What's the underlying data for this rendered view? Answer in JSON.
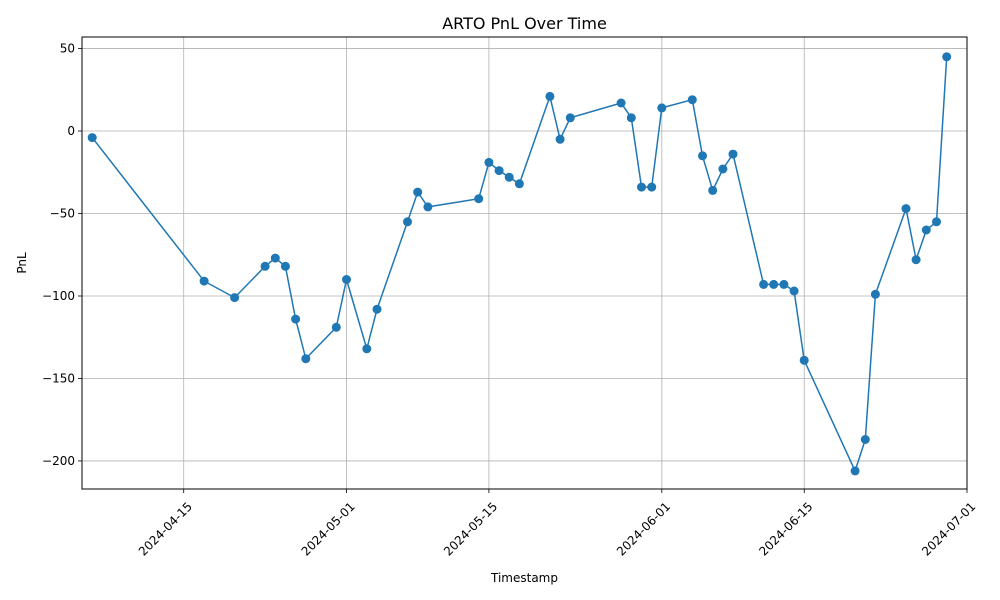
{
  "chart_data": {
    "type": "line",
    "title": "ARTO PnL Over Time",
    "xlabel": "Timestamp",
    "ylabel": "PnL",
    "xlim": [
      "2024-04-05",
      "2024-07-01"
    ],
    "ylim": [
      -217,
      57
    ],
    "x_ticks": [
      "2024-04-15",
      "2024-05-01",
      "2024-05-15",
      "2024-06-01",
      "2024-06-15",
      "2024-07-01"
    ],
    "y_ticks": [
      50,
      0,
      -50,
      -100,
      -150,
      -200
    ],
    "y_tick_labels": [
      "50",
      "0",
      "−50",
      "−100",
      "−150",
      "−200"
    ],
    "grid": true,
    "series_color": "#1f77b4",
    "marker": "circle",
    "series": [
      {
        "x": [
          "2024-04-06",
          "2024-04-17",
          "2024-04-20",
          "2024-04-23",
          "2024-04-24",
          "2024-04-25",
          "2024-04-26",
          "2024-04-27",
          "2024-04-30",
          "2024-05-01",
          "2024-05-03",
          "2024-05-04",
          "2024-05-07",
          "2024-05-08",
          "2024-05-09",
          "2024-05-14",
          "2024-05-15",
          "2024-05-16",
          "2024-05-17",
          "2024-05-18",
          "2024-05-21",
          "2024-05-22",
          "2024-05-23",
          "2024-05-28",
          "2024-05-29",
          "2024-05-30",
          "2024-05-31",
          "2024-06-01",
          "2024-06-04",
          "2024-06-05",
          "2024-06-06",
          "2024-06-07",
          "2024-06-08",
          "2024-06-11",
          "2024-06-12",
          "2024-06-13",
          "2024-06-14",
          "2024-06-15",
          "2024-06-20",
          "2024-06-21",
          "2024-06-22",
          "2024-06-25",
          "2024-06-26",
          "2024-06-27",
          "2024-06-28",
          "2024-06-29"
        ],
        "y": [
          -4,
          -91,
          -101,
          -82,
          -77,
          -82,
          -114,
          -138,
          -119,
          -90,
          -132,
          -108,
          -55,
          -37,
          -46,
          -41,
          -19,
          -24,
          -28,
          -32,
          21,
          -5,
          8,
          17,
          8,
          -34,
          -34,
          14,
          19,
          -15,
          -36,
          -23,
          -14,
          -93,
          -93,
          -93,
          -97,
          -139,
          -206,
          -187,
          -99,
          -47,
          -78,
          -60,
          -55,
          45
        ]
      }
    ]
  }
}
